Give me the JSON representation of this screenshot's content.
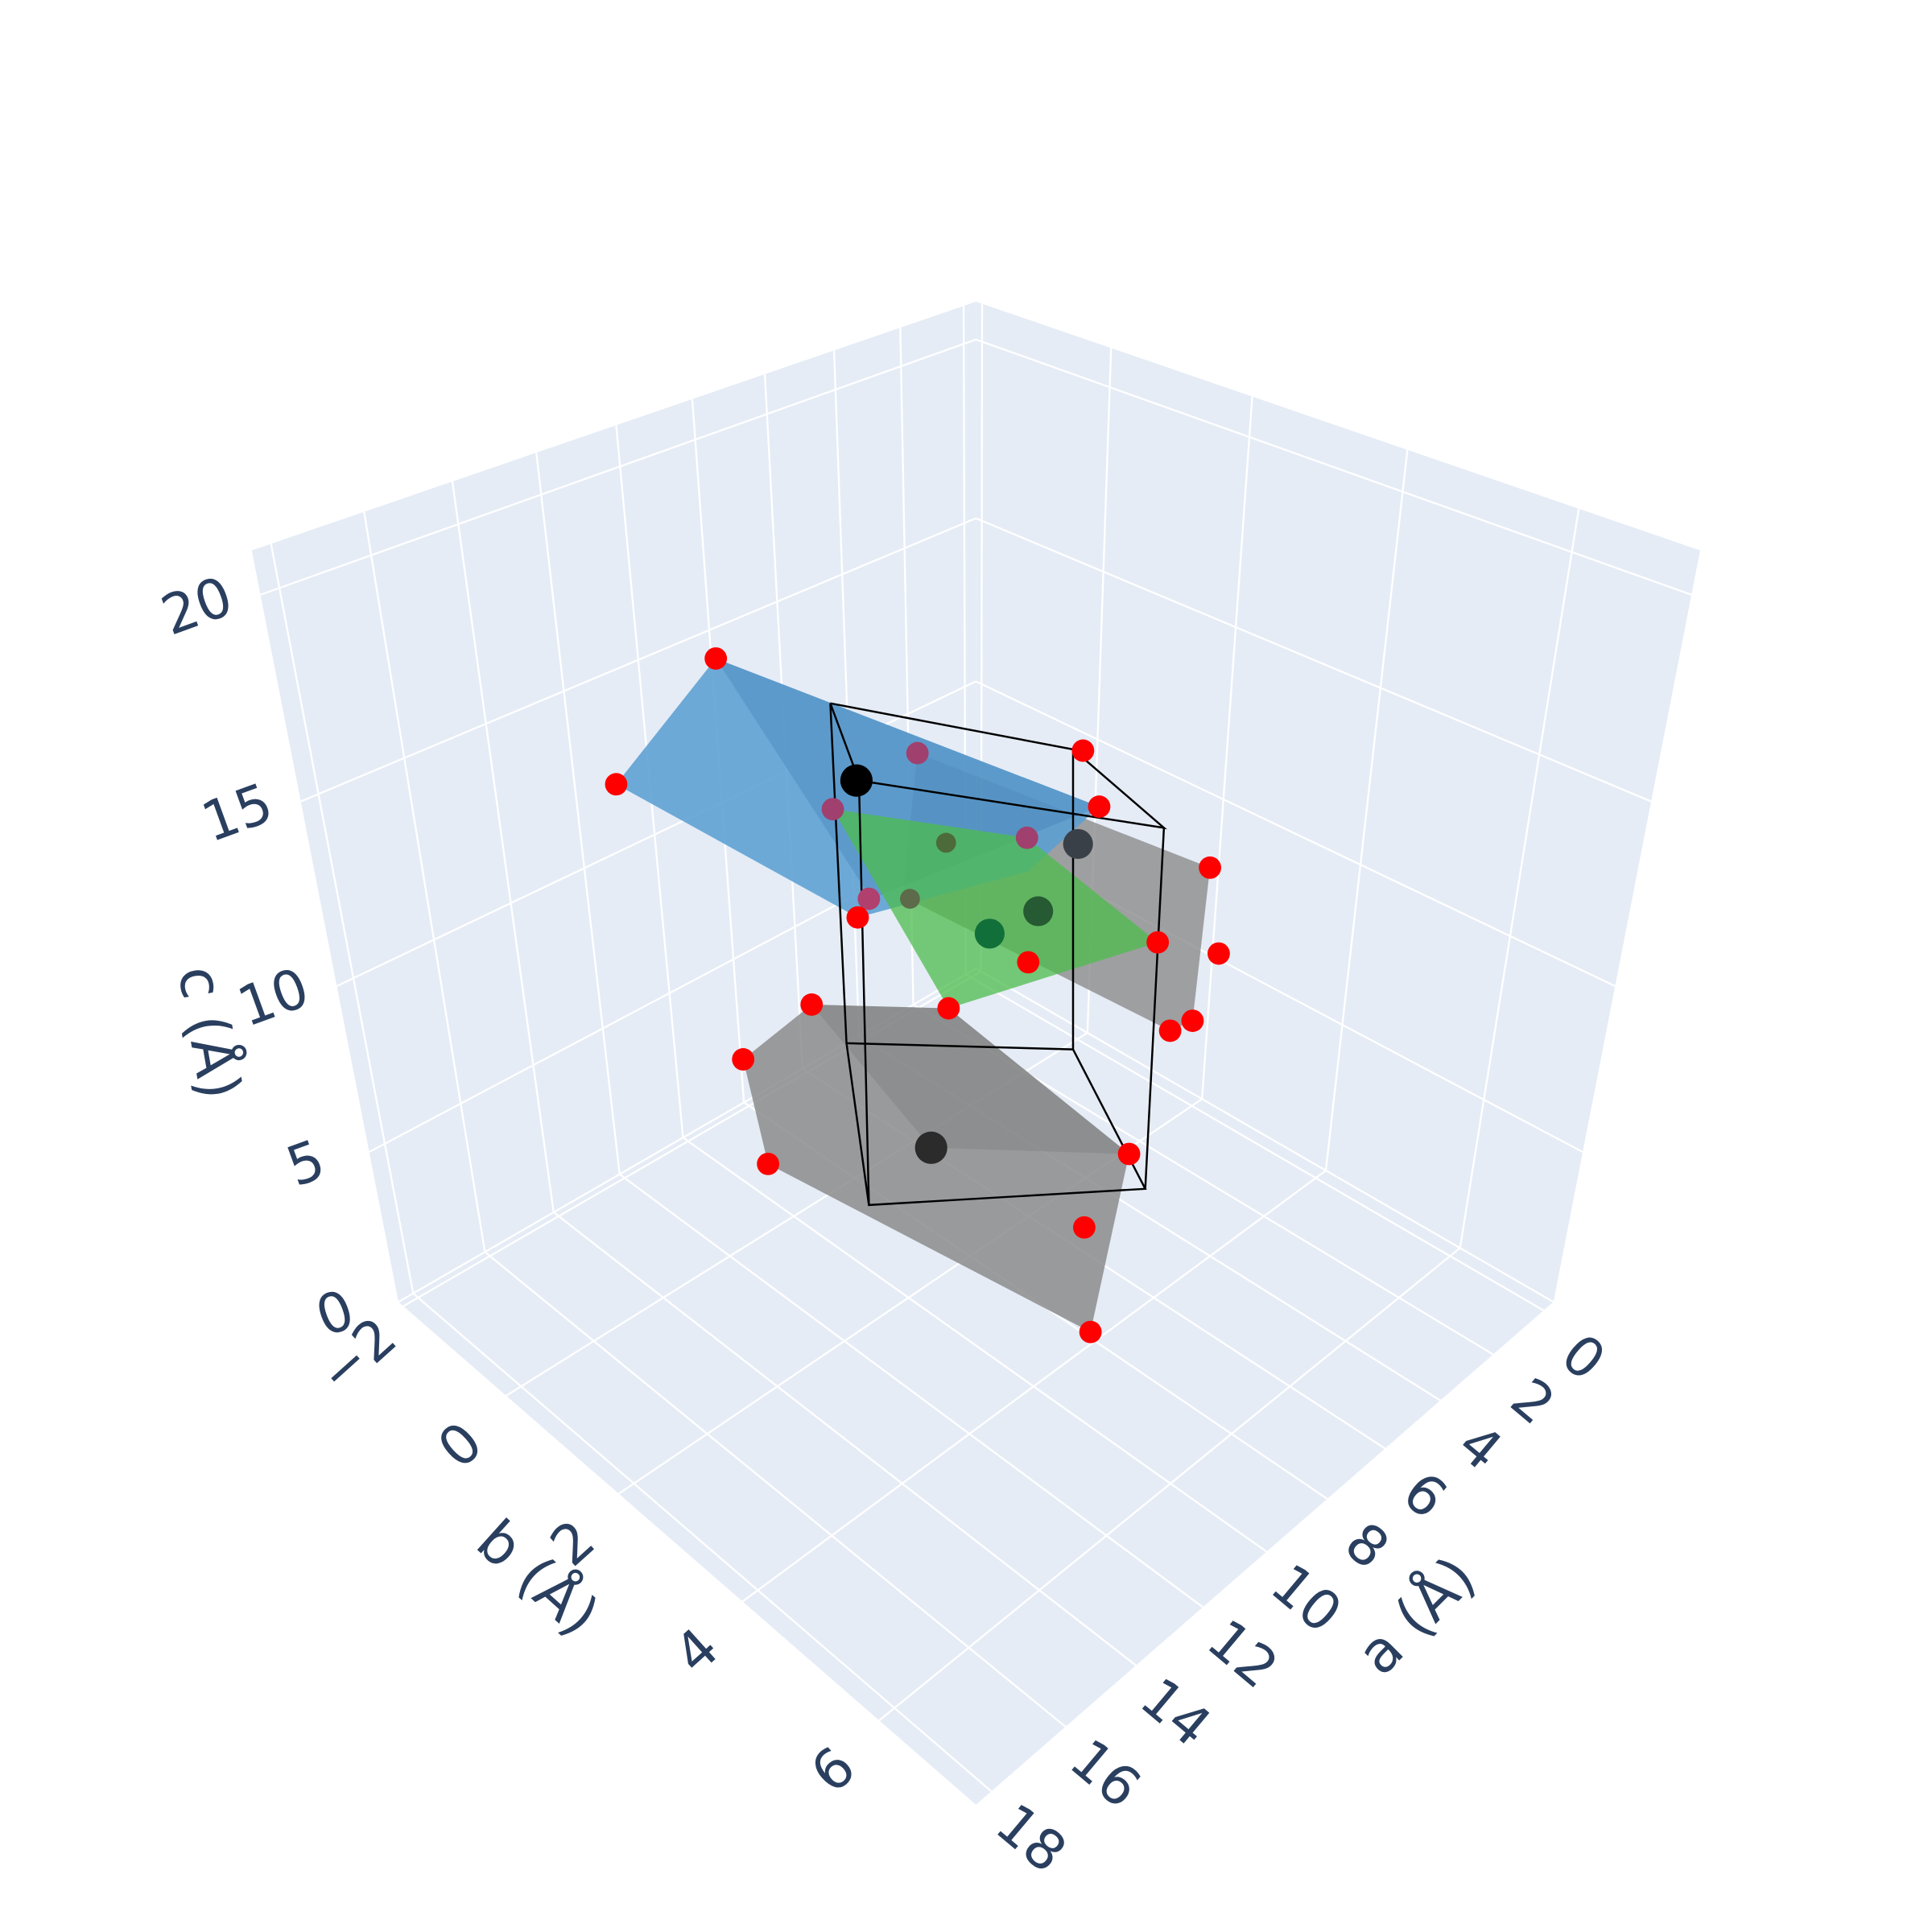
{
  "chart_data": {
    "type": "scatter3d",
    "xaxis_title": "a (Å)",
    "yaxis_title": "b (Å)",
    "zaxis_title": "c (Å)",
    "xlim": [
      -0.4,
      18.4
    ],
    "xticks": [
      0,
      2,
      4,
      6,
      8,
      10,
      12,
      14,
      16,
      18
    ],
    "ylim": [
      -2.1,
      7.3
    ],
    "yticks": [
      {
        "value": -2,
        "label": "−2"
      },
      0,
      2,
      4,
      6
    ],
    "zlim": [
      0,
      21
    ],
    "zticks": [
      0,
      5,
      10,
      15,
      20
    ],
    "grid": true,
    "background": "#e5ecf6",
    "grid_color": "#ffffff"
  }
}
